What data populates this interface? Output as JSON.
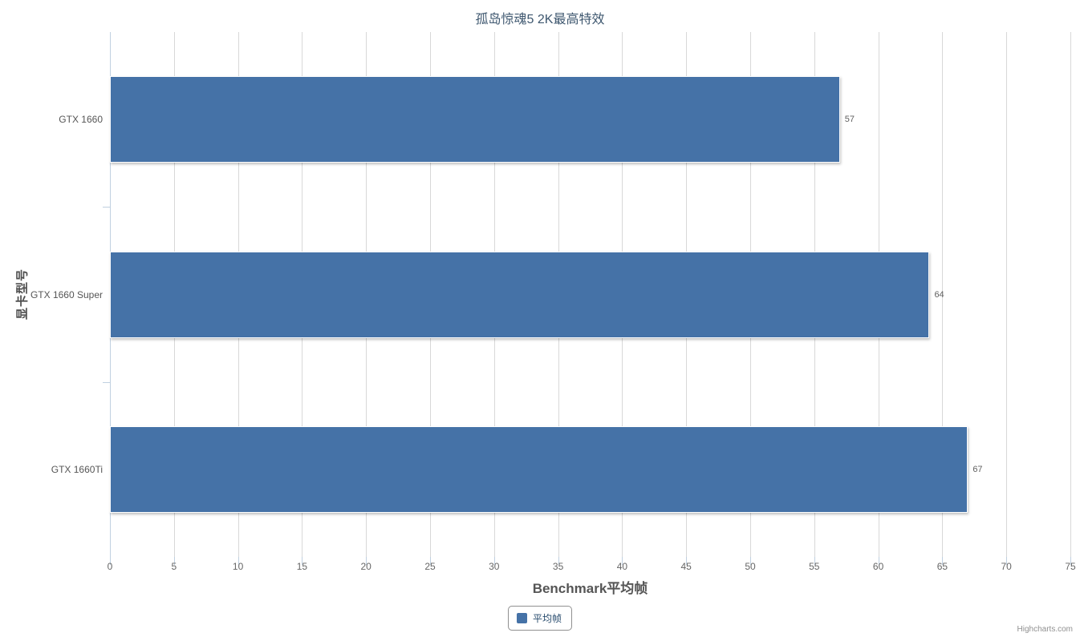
{
  "chart": {
    "credits": "Highcharts.com"
  },
  "chart_data": {
    "type": "bar",
    "orientation": "horizontal",
    "title": "孤岛惊魂5 2K最高特效",
    "categories": [
      "GTX 1660",
      "GTX 1660 Super",
      "GTX 1660Ti"
    ],
    "series": [
      {
        "name": "平均帧",
        "values": [
          57,
          64,
          67
        ]
      }
    ],
    "data_labels_visible": true,
    "xlabel": "Benchmark平均帧",
    "ylabel": "显卡型号",
    "value_axis": {
      "min": 0,
      "max": 75,
      "tick_interval": 5,
      "tick_labels": [
        "0",
        "5",
        "10",
        "15",
        "20",
        "25",
        "30",
        "35",
        "40",
        "45",
        "50",
        "55",
        "60",
        "65",
        "70",
        "75"
      ]
    },
    "grid": true,
    "legend": {
      "position": "bottom-center",
      "items": [
        {
          "label": "平均帧",
          "color": "#4572A7"
        }
      ]
    },
    "colors": {
      "bar": "#4572A7",
      "grid": "#D8D8D8",
      "axis_line": "#C0D0E0",
      "title_text": "#3E576F",
      "label_text": "#666666"
    }
  }
}
